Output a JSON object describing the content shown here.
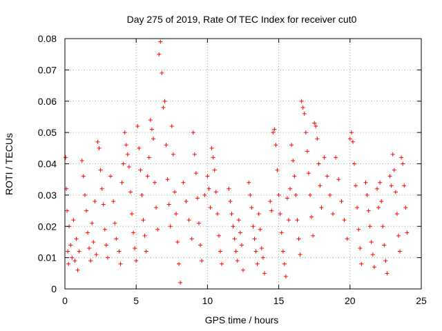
{
  "chart_data": {
    "type": "scatter",
    "title": "Day 275 of 2019, Rate Of TEC Index for receiver cut0",
    "xlabel": "GPS time / hours",
    "ylabel": "ROTI / TECUs",
    "xlim": [
      0,
      25
    ],
    "ylim": [
      0,
      0.08
    ],
    "xticks": [
      0,
      5,
      10,
      15,
      20,
      25
    ],
    "yticks": [
      0,
      0.01,
      0.02,
      0.03,
      0.04,
      0.05,
      0.06,
      0.07,
      0.08
    ],
    "xtick_labels": [
      "0",
      "5",
      "10",
      "15",
      "20",
      "25"
    ],
    "ytick_labels": [
      "0",
      "0.01",
      "0.02",
      "0.03",
      "0.04",
      "0.05",
      "0.06",
      "0.07",
      "0.08"
    ],
    "grid": true,
    "marker": "+",
    "marker_color": "#ff0000",
    "series": [
      {
        "name": "ROTI",
        "points": [
          [
            0.05,
            0.042
          ],
          [
            0.1,
            0.032
          ],
          [
            0.15,
            0.025
          ],
          [
            0.2,
            0.012
          ],
          [
            0.25,
            0.008
          ],
          [
            0.3,
            0.02
          ],
          [
            0.4,
            0.014
          ],
          [
            0.5,
            0.01
          ],
          [
            0.6,
            0.022
          ],
          [
            0.7,
            0.009
          ],
          [
            0.8,
            0.016
          ],
          [
            0.9,
            0.006
          ],
          [
            1.0,
            0.012
          ],
          [
            1.2,
            0.041
          ],
          [
            1.3,
            0.036
          ],
          [
            1.4,
            0.03
          ],
          [
            1.5,
            0.025
          ],
          [
            1.6,
            0.018
          ],
          [
            1.7,
            0.013
          ],
          [
            1.8,
            0.009
          ],
          [
            1.9,
            0.021
          ],
          [
            2.0,
            0.015
          ],
          [
            2.1,
            0.028
          ],
          [
            2.2,
            0.011
          ],
          [
            2.3,
            0.047
          ],
          [
            2.4,
            0.045
          ],
          [
            2.5,
            0.038
          ],
          [
            2.6,
            0.032
          ],
          [
            2.7,
            0.027
          ],
          [
            2.8,
            0.019
          ],
          [
            2.9,
            0.014
          ],
          [
            3.0,
            0.01
          ],
          [
            3.2,
            0.036
          ],
          [
            3.4,
            0.028
          ],
          [
            3.5,
            0.021
          ],
          [
            3.6,
            0.016
          ],
          [
            3.8,
            0.012
          ],
          [
            3.9,
            0.008
          ],
          [
            4.0,
            0.034
          ],
          [
            4.1,
            0.04
          ],
          [
            4.2,
            0.05
          ],
          [
            4.3,
            0.046
          ],
          [
            4.4,
            0.043
          ],
          [
            4.5,
            0.039
          ],
          [
            4.6,
            0.031
          ],
          [
            4.7,
            0.024
          ],
          [
            4.8,
            0.018
          ],
          [
            4.9,
            0.013
          ],
          [
            5.0,
            0.009
          ],
          [
            5.1,
            0.052
          ],
          [
            5.2,
            0.045
          ],
          [
            5.3,
            0.038
          ],
          [
            5.4,
            0.03
          ],
          [
            5.5,
            0.022
          ],
          [
            5.6,
            0.017
          ],
          [
            5.7,
            0.012
          ],
          [
            5.8,
            0.036
          ],
          [
            5.9,
            0.042
          ],
          [
            6.0,
            0.054
          ],
          [
            6.1,
            0.051
          ],
          [
            6.2,
            0.048
          ],
          [
            6.3,
            0.034
          ],
          [
            6.4,
            0.026
          ],
          [
            6.5,
            0.019
          ],
          [
            6.6,
            0.075
          ],
          [
            6.7,
            0.079
          ],
          [
            6.8,
            0.069
          ],
          [
            6.9,
            0.058
          ],
          [
            7.0,
            0.06
          ],
          [
            7.1,
            0.046
          ],
          [
            7.2,
            0.035
          ],
          [
            7.3,
            0.027
          ],
          [
            7.4,
            0.02
          ],
          [
            7.5,
            0.052
          ],
          [
            7.6,
            0.043
          ],
          [
            7.7,
            0.031
          ],
          [
            7.8,
            0.024
          ],
          [
            7.9,
            0.015
          ],
          [
            8.0,
            0.008
          ],
          [
            8.1,
            0.002
          ],
          [
            8.3,
            0.034
          ],
          [
            8.5,
            0.028
          ],
          [
            8.7,
            0.022
          ],
          [
            8.9,
            0.016
          ],
          [
            9.0,
            0.05
          ],
          [
            9.1,
            0.043
          ],
          [
            9.2,
            0.037
          ],
          [
            9.3,
            0.029
          ],
          [
            9.4,
            0.021
          ],
          [
            9.5,
            0.014
          ],
          [
            9.6,
            0.009
          ],
          [
            9.8,
            0.03
          ],
          [
            10.0,
            0.036
          ],
          [
            10.1,
            0.032
          ],
          [
            10.2,
            0.026
          ],
          [
            10.3,
            0.045
          ],
          [
            10.4,
            0.042
          ],
          [
            10.5,
            0.038
          ],
          [
            10.6,
            0.031
          ],
          [
            10.7,
            0.024
          ],
          [
            10.8,
            0.017
          ],
          [
            10.9,
            0.012
          ],
          [
            11.0,
            0.008
          ],
          [
            11.5,
            0.032
          ],
          [
            11.6,
            0.028
          ],
          [
            11.7,
            0.024
          ],
          [
            11.8,
            0.02
          ],
          [
            11.9,
            0.016
          ],
          [
            12.0,
            0.012
          ],
          [
            12.1,
            0.009
          ],
          [
            12.2,
            0.022
          ],
          [
            12.3,
            0.018
          ],
          [
            12.4,
            0.014
          ],
          [
            12.5,
            0.006
          ],
          [
            12.9,
            0.034
          ],
          [
            13.0,
            0.03
          ],
          [
            13.1,
            0.026
          ],
          [
            13.2,
            0.02
          ],
          [
            13.3,
            0.016
          ],
          [
            13.4,
            0.012
          ],
          [
            13.5,
            0.008
          ],
          [
            13.6,
            0.024
          ],
          [
            13.7,
            0.019
          ],
          [
            13.8,
            0.013
          ],
          [
            13.9,
            0.01
          ],
          [
            14.0,
            0.005
          ],
          [
            14.4,
            0.028
          ],
          [
            14.5,
            0.025
          ],
          [
            14.6,
            0.05
          ],
          [
            14.7,
            0.051
          ],
          [
            14.8,
            0.046
          ],
          [
            14.9,
            0.038
          ],
          [
            15.0,
            0.03
          ],
          [
            15.1,
            0.024
          ],
          [
            15.2,
            0.018
          ],
          [
            15.3,
            0.012
          ],
          [
            15.4,
            0.008
          ],
          [
            15.5,
            0.004
          ],
          [
            15.6,
            0.029
          ],
          [
            15.7,
            0.022
          ],
          [
            15.8,
            0.032
          ],
          [
            15.9,
            0.046
          ],
          [
            16.0,
            0.041
          ],
          [
            16.1,
            0.036
          ],
          [
            16.2,
            0.03
          ],
          [
            16.3,
            0.022
          ],
          [
            16.4,
            0.016
          ],
          [
            16.5,
            0.011
          ],
          [
            16.6,
            0.06
          ],
          [
            16.7,
            0.058
          ],
          [
            16.8,
            0.056
          ],
          [
            16.9,
            0.05
          ],
          [
            17.0,
            0.044
          ],
          [
            17.1,
            0.037
          ],
          [
            17.2,
            0.03
          ],
          [
            17.3,
            0.023
          ],
          [
            17.4,
            0.017
          ],
          [
            17.5,
            0.053
          ],
          [
            17.6,
            0.052
          ],
          [
            17.7,
            0.048
          ],
          [
            17.8,
            0.04
          ],
          [
            17.9,
            0.033
          ],
          [
            18.0,
            0.026
          ],
          [
            18.2,
            0.042
          ],
          [
            18.4,
            0.036
          ],
          [
            18.6,
            0.03
          ],
          [
            18.8,
            0.024
          ],
          [
            19.0,
            0.042
          ],
          [
            19.2,
            0.035
          ],
          [
            19.4,
            0.028
          ],
          [
            19.6,
            0.022
          ],
          [
            19.8,
            0.016
          ],
          [
            20.0,
            0.048
          ],
          [
            20.1,
            0.05
          ],
          [
            20.2,
            0.047
          ],
          [
            20.3,
            0.04
          ],
          [
            20.4,
            0.033
          ],
          [
            20.5,
            0.026
          ],
          [
            20.6,
            0.019
          ],
          [
            20.7,
            0.013
          ],
          [
            20.8,
            0.008
          ],
          [
            21.1,
            0.034
          ],
          [
            21.2,
            0.03
          ],
          [
            21.3,
            0.025
          ],
          [
            21.4,
            0.02
          ],
          [
            21.5,
            0.015
          ],
          [
            21.6,
            0.011
          ],
          [
            21.7,
            0.007
          ],
          [
            21.9,
            0.032
          ],
          [
            22.0,
            0.026
          ],
          [
            22.1,
            0.034
          ],
          [
            22.2,
            0.028
          ],
          [
            22.3,
            0.02
          ],
          [
            22.4,
            0.014
          ],
          [
            22.5,
            0.009
          ],
          [
            22.6,
            0.005
          ],
          [
            22.8,
            0.036
          ],
          [
            22.9,
            0.033
          ],
          [
            23.0,
            0.043
          ],
          [
            23.1,
            0.038
          ],
          [
            23.2,
            0.031
          ],
          [
            23.3,
            0.024
          ],
          [
            23.4,
            0.017
          ],
          [
            23.5,
            0.012
          ],
          [
            23.6,
            0.042
          ],
          [
            23.7,
            0.04
          ],
          [
            23.8,
            0.033
          ],
          [
            23.9,
            0.026
          ],
          [
            24.0,
            0.018
          ]
        ]
      }
    ]
  }
}
